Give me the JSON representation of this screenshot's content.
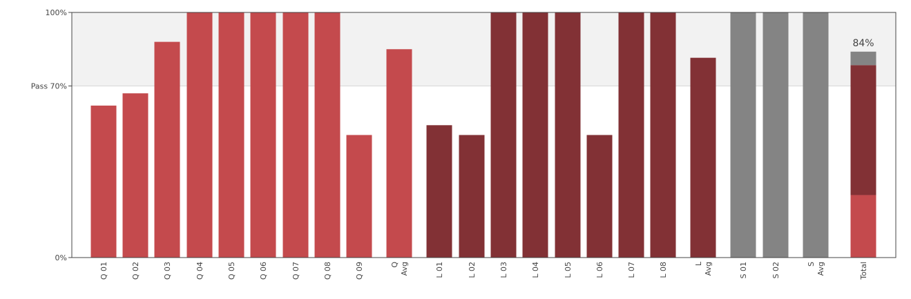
{
  "chart_data": {
    "type": "bar",
    "yticks": [
      {
        "value": 100,
        "label": "100%"
      },
      {
        "value": 70,
        "label": "Pass 70%"
      },
      {
        "value": 0,
        "label": "0%"
      }
    ],
    "ylim": [
      0,
      100
    ],
    "pass_threshold": 70,
    "colors": {
      "quiz": "#c44a4d",
      "lab": "#823135",
      "survey": "#848484",
      "pass_band": "#f2f2f2",
      "axis": "#444444"
    },
    "categories": [
      {
        "label": "Q 01",
        "group": "quiz",
        "value": 62
      },
      {
        "label": "Q 02",
        "group": "quiz",
        "value": 67
      },
      {
        "label": "Q 03",
        "group": "quiz",
        "value": 88
      },
      {
        "label": "Q 04",
        "group": "quiz",
        "value": 100
      },
      {
        "label": "Q 05",
        "group": "quiz",
        "value": 100
      },
      {
        "label": "Q 06",
        "group": "quiz",
        "value": 100
      },
      {
        "label": "Q 07",
        "group": "quiz",
        "value": 100
      },
      {
        "label": "Q 08",
        "group": "quiz",
        "value": 100
      },
      {
        "label": "Q 09",
        "group": "quiz",
        "value": 50
      },
      {
        "label": "Q Avg",
        "group": "quiz",
        "value": 85
      },
      {
        "label": "L 01",
        "group": "lab",
        "value": 54
      },
      {
        "label": "L 02",
        "group": "lab",
        "value": 50
      },
      {
        "label": "L 03",
        "group": "lab",
        "value": 100
      },
      {
        "label": "L 04",
        "group": "lab",
        "value": 100
      },
      {
        "label": "L 05",
        "group": "lab",
        "value": 100
      },
      {
        "label": "L 06",
        "group": "lab",
        "value": 50
      },
      {
        "label": "L 07",
        "group": "lab",
        "value": 100
      },
      {
        "label": "L 08",
        "group": "lab",
        "value": 100
      },
      {
        "label": "L Avg",
        "group": "lab",
        "value": 81.5
      },
      {
        "label": "S 01",
        "group": "survey",
        "value": 100
      },
      {
        "label": "S 02",
        "group": "survey",
        "value": 100
      },
      {
        "label": "S Avg",
        "group": "survey",
        "value": 100
      }
    ],
    "total": {
      "label": "Total",
      "value_label": "84%",
      "segments": [
        {
          "group": "quiz",
          "value": 25.5
        },
        {
          "group": "lab",
          "value": 53
        },
        {
          "group": "survey",
          "value": 5.5
        }
      ]
    }
  }
}
